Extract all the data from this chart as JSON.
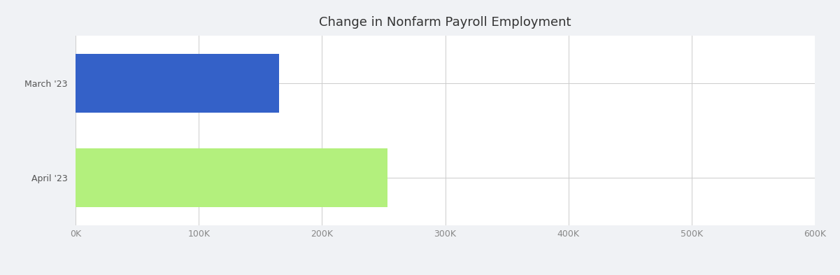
{
  "title": "Change in Nonfarm Payroll Employment",
  "categories": [
    "March '23",
    "April '23"
  ],
  "values": [
    165000,
    253000
  ],
  "bar_colors": [
    "#3461c8",
    "#b3f07d"
  ],
  "xlim": [
    0,
    600000
  ],
  "xticks": [
    0,
    100000,
    200000,
    300000,
    400000,
    500000,
    600000
  ],
  "xtick_labels": [
    "0K",
    "100K",
    "200K",
    "300K",
    "400K",
    "500K",
    "600K"
  ],
  "plot_bg_color": "#ffffff",
  "fig_bg_color": "#f0f2f5",
  "grid_color": "#cccccc",
  "title_fontsize": 13,
  "tick_fontsize": 9,
  "label_fontsize": 9,
  "title_color": "#333333",
  "label_color": "#555555",
  "tick_color": "#888888"
}
